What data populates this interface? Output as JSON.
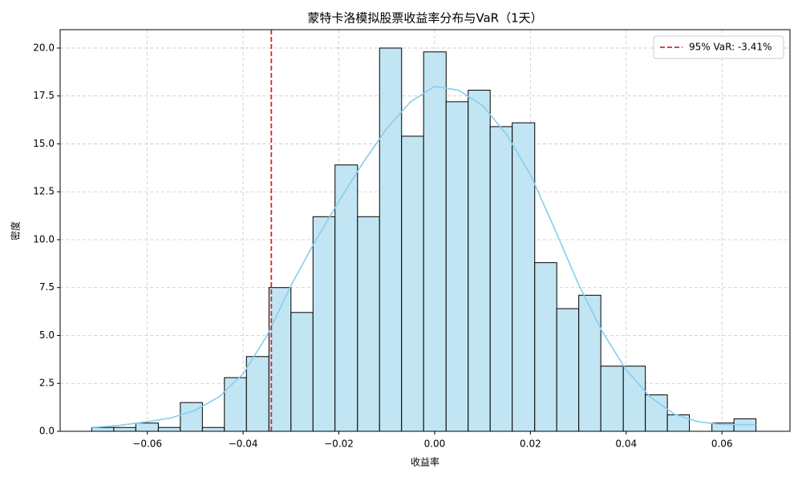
{
  "chart_data": {
    "type": "histogram",
    "title": "蒙特卡洛模拟股票收益率分布与VaR（1天）",
    "x_label": "收益率",
    "y_label": "密度",
    "bins": [
      -0.0716,
      -0.067,
      -0.0624,
      -0.0577,
      -0.0531,
      -0.0485,
      -0.0439,
      -0.0393,
      -0.0346,
      -0.03,
      -0.0254,
      -0.0208,
      -0.0161,
      -0.0115,
      -0.0069,
      -0.0023,
      0.0024,
      0.007,
      0.0116,
      0.0162,
      0.0209,
      0.0255,
      0.0301,
      0.0347,
      0.0394,
      0.044,
      0.0486,
      0.0532,
      0.0579,
      0.0625,
      0.0671
    ],
    "values": [
      0.2,
      0.2,
      0.43,
      0.2,
      1.5,
      0.2,
      2.8,
      3.9,
      7.5,
      6.2,
      11.2,
      13.9,
      11.2,
      20.0,
      15.4,
      19.8,
      17.2,
      17.8,
      15.9,
      16.1,
      8.8,
      6.4,
      7.1,
      3.4,
      3.4,
      1.9,
      0.86,
      0,
      0.43,
      0.65
    ],
    "color": "#c2e5f3",
    "edgecolor": "#000000",
    "kde": {
      "color": "#87ceeb",
      "x": [
        -0.0716,
        -0.066,
        -0.06,
        -0.055,
        -0.05,
        -0.045,
        -0.04,
        -0.035,
        -0.03,
        -0.025,
        -0.02,
        -0.015,
        -0.01,
        -0.005,
        0.0,
        0.005,
        0.01,
        0.015,
        0.02,
        0.025,
        0.03,
        0.035,
        0.04,
        0.045,
        0.05,
        0.055,
        0.06,
        0.0671
      ],
      "y": [
        0.2,
        0.3,
        0.5,
        0.7,
        1.1,
        1.8,
        3.0,
        5.0,
        7.6,
        9.9,
        12.0,
        14.0,
        15.8,
        17.2,
        18.0,
        17.8,
        17.0,
        15.5,
        13.4,
        10.6,
        7.7,
        5.2,
        3.2,
        1.8,
        0.9,
        0.5,
        0.35,
        0.35
      ]
    },
    "var_line": {
      "x": -0.0341,
      "label": "95% VaR: -3.41%",
      "color": "#d62728"
    },
    "xlim": [
      -0.0782,
      0.0742
    ],
    "ylim": [
      0,
      20.96
    ],
    "xticks": [
      {
        "value": -0.06,
        "label": "−0.06"
      },
      {
        "value": -0.04,
        "label": "−0.04"
      },
      {
        "value": -0.02,
        "label": "−0.02"
      },
      {
        "value": 0,
        "label": "0.00"
      },
      0.02,
      0.04,
      0.06
    ],
    "yticks": [
      {
        "value": 0,
        "label": "0.0"
      },
      2.5,
      {
        "value": 5,
        "label": "5.0"
      },
      7.5,
      {
        "value": 10,
        "label": "10.0"
      },
      12.5,
      {
        "value": 15,
        "label": "15.0"
      },
      17.5,
      {
        "value": 20,
        "label": "20.0"
      }
    ],
    "grid": true,
    "legend": "upper right"
  }
}
